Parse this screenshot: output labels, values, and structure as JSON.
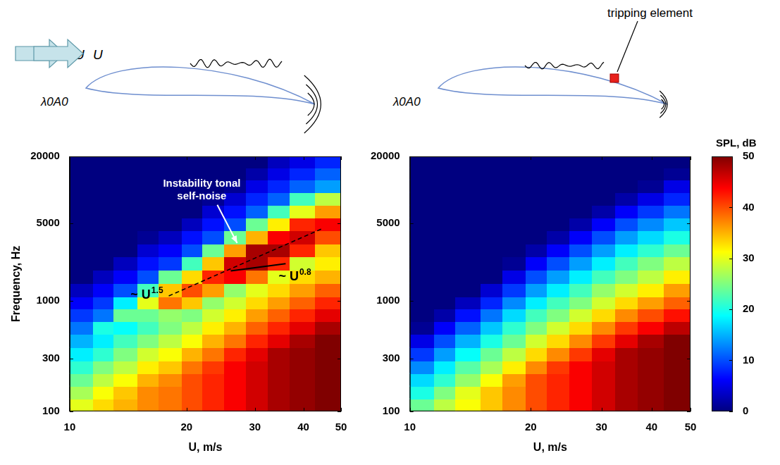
{
  "diagrams": [
    {
      "flow_label": "U",
      "airfoil_label": "λ0A0"
    },
    {
      "flow_label": "U",
      "airfoil_label": "λ0A0",
      "callout": "tripping element"
    }
  ],
  "colorbar": {
    "label": "SPL, dB",
    "range": [
      0,
      50
    ],
    "ticks": [
      0,
      10,
      20,
      30,
      40,
      50
    ]
  },
  "chart_data": [
    {
      "type": "heatmap",
      "x_label": "U, m/s",
      "y_label": "Frequency, Hz",
      "log": true,
      "grid": false,
      "xlim": [
        10,
        50
      ],
      "xticks": [
        10,
        20,
        30,
        40,
        50
      ],
      "ylim": [
        100,
        20000
      ],
      "yticks": [
        100,
        300,
        1000,
        5000,
        20000
      ],
      "x_bins": [
        10,
        11.5,
        13,
        15,
        17,
        19.5,
        22,
        25,
        28.5,
        32.5,
        37,
        43,
        50
      ],
      "y_bins": [
        100,
        130,
        170,
        220,
        290,
        380,
        500,
        650,
        850,
        1100,
        1450,
        1900,
        2500,
        3300,
        4300,
        5600,
        7300,
        9500,
        12500,
        16000,
        20000
      ],
      "cells": [
        [
          30,
          33,
          35,
          37,
          38,
          40,
          42,
          44,
          46,
          48,
          49,
          50
        ],
        [
          27,
          31,
          34,
          37,
          38,
          40,
          42,
          44,
          46,
          48,
          49,
          50
        ],
        [
          24,
          28,
          31,
          35,
          37,
          40,
          42,
          44,
          46,
          48,
          49,
          50
        ],
        [
          21,
          25,
          28,
          32,
          34,
          38,
          41,
          44,
          46,
          48,
          49,
          50
        ],
        [
          18,
          21,
          25,
          29,
          31,
          35,
          38,
          42,
          45,
          48,
          49,
          50
        ],
        [
          15,
          18,
          22,
          25,
          28,
          31,
          35,
          38,
          42,
          45,
          48,
          50
        ],
        [
          12,
          20,
          19,
          22,
          25,
          28,
          32,
          35,
          39,
          42,
          45,
          48
        ],
        [
          9,
          12,
          24,
          24,
          26,
          25,
          29,
          32,
          36,
          39,
          42,
          45
        ],
        [
          6,
          9,
          18,
          30,
          38,
          34,
          26,
          29,
          33,
          36,
          39,
          42
        ],
        [
          3,
          6,
          10,
          22,
          34,
          40,
          36,
          26,
          30,
          33,
          36,
          39
        ],
        [
          0,
          3,
          6,
          10,
          24,
          33,
          42,
          44,
          38,
          30,
          33,
          35
        ],
        [
          0,
          0,
          3,
          7,
          9,
          22,
          34,
          46,
          48,
          42,
          29,
          32
        ],
        [
          0,
          0,
          0,
          4,
          6,
          10,
          24,
          36,
          48,
          48,
          42,
          34
        ],
        [
          0,
          0,
          0,
          1,
          3,
          7,
          10,
          24,
          35,
          44,
          46,
          40
        ],
        [
          0,
          0,
          0,
          0,
          0,
          3,
          7,
          10,
          24,
          32,
          42,
          44
        ],
        [
          0,
          0,
          0,
          0,
          0,
          0,
          4,
          7,
          11,
          22,
          30,
          36
        ],
        [
          0,
          0,
          0,
          0,
          0,
          0,
          1,
          4,
          8,
          11,
          22,
          28
        ],
        [
          0,
          0,
          0,
          0,
          0,
          0,
          0,
          1,
          5,
          8,
          11,
          14
        ],
        [
          0,
          0,
          0,
          0,
          0,
          0,
          0,
          0,
          2,
          5,
          8,
          11
        ],
        [
          0,
          0,
          0,
          0,
          0,
          0,
          0,
          0,
          0,
          3,
          5,
          8
        ]
      ],
      "annotations": [
        {
          "text": "Instability tonal self-noise",
          "arrow": [
            [
              24,
              7300
            ],
            [
              27,
              3300
            ]
          ]
        },
        {
          "text": "~ U",
          "superscript": "1.5",
          "line_style": "dashed",
          "points": [
            [
              18,
              1100
            ],
            [
              45,
              4500
            ]
          ]
        },
        {
          "text": "~ U",
          "superscript": "0.8",
          "line_style": "solid",
          "points": [
            [
              36,
              2150
            ],
            [
              26,
              1850
            ]
          ]
        }
      ]
    },
    {
      "type": "heatmap",
      "x_label": "U, m/s",
      "log": true,
      "grid": false,
      "xlim": [
        10,
        50
      ],
      "xticks": [
        10,
        20,
        30,
        40,
        50
      ],
      "ylim": [
        100,
        20000
      ],
      "yticks": [
        100,
        300,
        1000,
        5000,
        20000
      ],
      "x_bins": [
        10,
        11.5,
        13,
        15,
        17,
        19.5,
        22,
        25,
        28.5,
        32.5,
        37,
        43,
        50
      ],
      "y_bins": [
        100,
        130,
        170,
        220,
        290,
        380,
        500,
        650,
        850,
        1100,
        1450,
        1900,
        2500,
        3300,
        4300,
        5600,
        7300,
        9500,
        12500,
        16000,
        20000
      ],
      "cells": [
        [
          24,
          28,
          31,
          34,
          37,
          40,
          42,
          44,
          46,
          48,
          49,
          50
        ],
        [
          20,
          25,
          30,
          34,
          37,
          40,
          42,
          44,
          46,
          48,
          49,
          50
        ],
        [
          17,
          21,
          26,
          31,
          36,
          40,
          42,
          44,
          46,
          48,
          49,
          50
        ],
        [
          13,
          18,
          23,
          27,
          32,
          37,
          41,
          44,
          46,
          48,
          49,
          50
        ],
        [
          9,
          14,
          19,
          24,
          28,
          33,
          37,
          41,
          45,
          48,
          49,
          50
        ],
        [
          5,
          10,
          15,
          20,
          24,
          29,
          33,
          37,
          41,
          45,
          48,
          50
        ],
        [
          1,
          6,
          11,
          16,
          21,
          25,
          29,
          33,
          37,
          41,
          44,
          47
        ],
        [
          0,
          2,
          7,
          12,
          17,
          22,
          25,
          29,
          33,
          37,
          40,
          43
        ],
        [
          0,
          0,
          3,
          8,
          13,
          18,
          22,
          25,
          29,
          33,
          36,
          39
        ],
        [
          0,
          0,
          0,
          4,
          9,
          14,
          18,
          22,
          26,
          29,
          32,
          36
        ],
        [
          0,
          0,
          0,
          0,
          5,
          10,
          14,
          18,
          22,
          25,
          28,
          32
        ],
        [
          0,
          0,
          0,
          0,
          1,
          6,
          10,
          14,
          18,
          22,
          25,
          28
        ],
        [
          0,
          0,
          0,
          0,
          0,
          2,
          6,
          10,
          14,
          18,
          21,
          24
        ],
        [
          0,
          0,
          0,
          0,
          0,
          0,
          2,
          6,
          10,
          14,
          17,
          20
        ],
        [
          0,
          0,
          0,
          0,
          0,
          0,
          0,
          2,
          6,
          10,
          13,
          16
        ],
        [
          0,
          0,
          0,
          0,
          0,
          0,
          0,
          0,
          2,
          6,
          9,
          12
        ],
        [
          0,
          0,
          0,
          0,
          0,
          0,
          0,
          0,
          0,
          2,
          5,
          8
        ],
        [
          0,
          0,
          0,
          0,
          0,
          0,
          0,
          0,
          0,
          0,
          1,
          5
        ],
        [
          0,
          0,
          0,
          0,
          0,
          0,
          0,
          0,
          0,
          0,
          0,
          1
        ],
        [
          0,
          0,
          0,
          0,
          0,
          0,
          0,
          0,
          0,
          0,
          0,
          0
        ]
      ]
    }
  ]
}
